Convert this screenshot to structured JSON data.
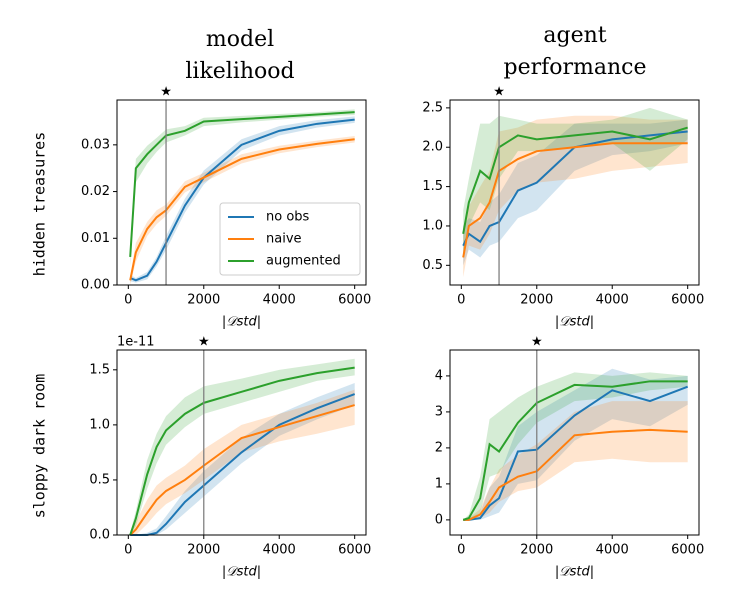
{
  "column_titles": [
    [
      "model",
      "likelihood"
    ],
    [
      "agent",
      "performance"
    ]
  ],
  "row_labels": [
    "hidden treasures",
    "sloppy dark room"
  ],
  "chart_data": [
    {
      "type": "line",
      "xlabel": "|𝒟std|",
      "marker_label": "★",
      "vline": 1000,
      "x": [
        50,
        200,
        500,
        750,
        1000,
        1500,
        2000,
        3000,
        4000,
        5000,
        6000
      ],
      "xlim": [
        -300,
        6300
      ],
      "xticks": [
        0,
        2000,
        4000,
        6000
      ],
      "ylim": [
        0,
        0.0396
      ],
      "yticks": [
        {
          "value": 0,
          "label": "0.00"
        },
        0.01,
        0.02,
        0.03
      ],
      "legend": "lower right",
      "series": [
        {
          "name": "no obs",
          "color": "#1f77b4",
          "values": [
            0.0015,
            0.001,
            0.002,
            0.005,
            0.009,
            0.017,
            0.023,
            0.03,
            0.033,
            0.0345,
            0.0354
          ],
          "lower": [
            0.0008,
            0.0005,
            0.0012,
            0.004,
            0.0075,
            0.0155,
            0.0215,
            0.0288,
            0.032,
            0.0337,
            0.0347
          ],
          "upper": [
            0.0022,
            0.0015,
            0.0028,
            0.006,
            0.0105,
            0.0185,
            0.0245,
            0.0312,
            0.034,
            0.0353,
            0.0361
          ]
        },
        {
          "name": "naive",
          "color": "#ff7f0e",
          "values": [
            0.001,
            0.007,
            0.012,
            0.0145,
            0.016,
            0.021,
            0.023,
            0.027,
            0.029,
            0.0302,
            0.0312
          ],
          "lower": [
            0,
            0.005,
            0.0105,
            0.013,
            0.0148,
            0.0198,
            0.022,
            0.026,
            0.0282,
            0.0295,
            0.0305
          ],
          "upper": [
            0.002,
            0.009,
            0.0135,
            0.016,
            0.0172,
            0.0222,
            0.024,
            0.028,
            0.0298,
            0.0309,
            0.0319
          ]
        },
        {
          "name": "augmented",
          "color": "#2ca02c",
          "values": [
            0.006,
            0.025,
            0.028,
            0.03,
            0.032,
            0.033,
            0.035,
            0.0355,
            0.036,
            0.0365,
            0.037
          ],
          "lower": [
            0.004,
            0.022,
            0.026,
            0.0285,
            0.0305,
            0.032,
            0.034,
            0.0348,
            0.0354,
            0.036,
            0.0364
          ],
          "upper": [
            0.008,
            0.027,
            0.0298,
            0.0315,
            0.0333,
            0.034,
            0.0358,
            0.0362,
            0.0366,
            0.037,
            0.0376
          ]
        }
      ]
    },
    {
      "type": "line",
      "xlabel": "|𝒟std|",
      "marker_label": "★",
      "vline": 1000,
      "x": [
        50,
        200,
        500,
        750,
        1000,
        1500,
        2000,
        3000,
        4000,
        5000,
        6000
      ],
      "xlim": [
        -300,
        6300
      ],
      "xticks": [
        0,
        2000,
        4000,
        6000
      ],
      "ylim": [
        0.25,
        2.6
      ],
      "yticks": [
        0.5,
        {
          "value": 1,
          "label": "1.0"
        },
        1.5,
        {
          "value": 2,
          "label": "2.0"
        },
        2.5
      ],
      "series": [
        {
          "color": "#1f77b4",
          "values": [
            0.75,
            0.9,
            0.8,
            1.0,
            1.05,
            1.45,
            1.55,
            2.0,
            2.1,
            2.15,
            2.2
          ],
          "lower": [
            0.5,
            0.7,
            0.6,
            0.75,
            0.8,
            1.1,
            1.2,
            1.7,
            1.9,
            1.95,
            2.05
          ],
          "upper": [
            1.0,
            1.1,
            1.05,
            1.3,
            1.4,
            1.8,
            1.9,
            2.3,
            2.3,
            2.3,
            2.35
          ]
        },
        {
          "color": "#ff7f0e",
          "values": [
            0.6,
            1.0,
            1.1,
            1.3,
            1.7,
            1.85,
            1.95,
            2.0,
            2.05,
            2.05,
            2.05
          ],
          "lower": [
            0.35,
            0.75,
            0.7,
            0.9,
            1.2,
            1.45,
            1.55,
            1.6,
            1.7,
            1.75,
            1.8
          ],
          "upper": [
            0.9,
            1.25,
            1.5,
            1.7,
            2.2,
            2.25,
            2.35,
            2.4,
            2.4,
            2.35,
            2.35
          ]
        },
        {
          "color": "#2ca02c",
          "values": [
            0.9,
            1.3,
            1.7,
            1.6,
            2.0,
            2.15,
            2.1,
            2.15,
            2.2,
            2.1,
            2.25
          ],
          "lower": [
            0.6,
            1.0,
            1.3,
            1.2,
            1.6,
            1.95,
            1.95,
            2.0,
            2.05,
            1.7,
            2.1
          ],
          "upper": [
            1.2,
            1.6,
            2.3,
            2.3,
            2.4,
            2.35,
            2.3,
            2.3,
            2.35,
            2.5,
            2.35
          ]
        }
      ]
    },
    {
      "type": "line",
      "xlabel": "|𝒟std|",
      "marker_label": "★",
      "vline": 2000,
      "offset_text": "1e-11",
      "x": [
        50,
        200,
        500,
        750,
        1000,
        1500,
        2000,
        3000,
        4000,
        5000,
        6000
      ],
      "xlim": [
        -300,
        6300
      ],
      "xticks": [
        0,
        2000,
        4000,
        6000
      ],
      "ylim": [
        0,
        1.68
      ],
      "yticks": [
        {
          "value": 0,
          "label": "0.0"
        },
        0.5,
        {
          "value": 1,
          "label": "1.0"
        },
        1.5
      ],
      "series": [
        {
          "color": "#1f77b4",
          "values": [
            0,
            0,
            0,
            0.02,
            0.1,
            0.3,
            0.45,
            0.75,
            1.0,
            1.15,
            1.28
          ],
          "lower": [
            0,
            0,
            0,
            0,
            0.05,
            0.2,
            0.35,
            0.65,
            0.9,
            1.05,
            1.18
          ],
          "upper": [
            0,
            0,
            0.02,
            0.06,
            0.17,
            0.4,
            0.58,
            0.88,
            1.1,
            1.25,
            1.38
          ]
        },
        {
          "color": "#ff7f0e",
          "values": [
            0,
            0.05,
            0.2,
            0.32,
            0.4,
            0.5,
            0.63,
            0.88,
            0.98,
            1.08,
            1.18
          ],
          "lower": [
            0,
            0,
            0.1,
            0.2,
            0.28,
            0.38,
            0.5,
            0.75,
            0.85,
            0.92,
            1.0
          ],
          "upper": [
            0,
            0.12,
            0.32,
            0.45,
            0.52,
            0.63,
            0.78,
            1.0,
            1.1,
            1.2,
            1.32
          ]
        },
        {
          "color": "#2ca02c",
          "values": [
            0,
            0.15,
            0.55,
            0.8,
            0.95,
            1.1,
            1.2,
            1.3,
            1.4,
            1.47,
            1.52
          ],
          "lower": [
            0,
            0.08,
            0.42,
            0.65,
            0.82,
            0.98,
            1.1,
            1.2,
            1.3,
            1.4,
            1.45
          ],
          "upper": [
            0.02,
            0.22,
            0.68,
            0.92,
            1.08,
            1.25,
            1.35,
            1.42,
            1.5,
            1.55,
            1.6
          ]
        }
      ]
    },
    {
      "type": "line",
      "xlabel": "|𝒟std|",
      "marker_label": "★",
      "vline": 2000,
      "x": [
        50,
        200,
        500,
        750,
        1000,
        1500,
        2000,
        3000,
        4000,
        5000,
        6000
      ],
      "xlim": [
        -300,
        6300
      ],
      "xticks": [
        0,
        2000,
        4000,
        6000
      ],
      "ylim": [
        -0.42,
        4.72
      ],
      "yticks": [
        0,
        1,
        2,
        3,
        4
      ],
      "series": [
        {
          "color": "#1f77b4",
          "values": [
            0,
            0,
            0.05,
            0.4,
            0.6,
            1.9,
            1.95,
            2.9,
            3.6,
            3.3,
            3.7
          ],
          "lower": [
            0,
            0,
            0,
            0.1,
            0.2,
            1.0,
            1.1,
            2.2,
            2.8,
            2.6,
            3.2
          ],
          "upper": [
            0,
            0.05,
            0.2,
            0.9,
            1.2,
            2.6,
            3.0,
            3.6,
            4.2,
            3.9,
            4.0
          ]
        },
        {
          "color": "#ff7f0e",
          "values": [
            0,
            0,
            0.15,
            0.5,
            0.9,
            1.2,
            1.35,
            2.35,
            2.45,
            2.5,
            2.45
          ],
          "lower": [
            0,
            0,
            0.05,
            0.2,
            0.5,
            0.8,
            0.9,
            1.6,
            1.7,
            1.6,
            1.6
          ],
          "upper": [
            0,
            0.05,
            0.3,
            0.9,
            1.4,
            1.8,
            2.1,
            3.0,
            3.3,
            3.3,
            3.3
          ]
        },
        {
          "color": "#2ca02c",
          "values": [
            0,
            0.05,
            0.6,
            2.1,
            1.9,
            2.7,
            3.25,
            3.75,
            3.7,
            3.85,
            3.85
          ],
          "lower": [
            0,
            0,
            0.2,
            1.2,
            1.3,
            2.1,
            2.7,
            3.3,
            3.4,
            3.6,
            3.7
          ],
          "upper": [
            0,
            0.15,
            1.2,
            2.8,
            3.0,
            3.4,
            3.7,
            4.1,
            4.0,
            4.1,
            4.0
          ]
        }
      ]
    }
  ]
}
